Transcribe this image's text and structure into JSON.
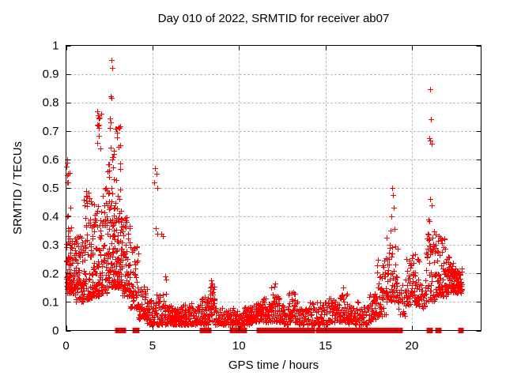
{
  "chart_data": {
    "type": "scatter",
    "title": "Day 010 of 2022, SRMTID for receiver ab07",
    "xlabel": "GPS time / hours",
    "ylabel": "SRMTID / TECUs",
    "xlim": [
      0,
      24
    ],
    "ylim": [
      0,
      1
    ],
    "xticks": [
      {
        "v": 0,
        "label": "0"
      },
      {
        "v": 5,
        "label": "5"
      },
      {
        "v": 10,
        "label": "10"
      },
      {
        "v": 15,
        "label": "15"
      },
      {
        "v": 20,
        "label": "20"
      }
    ],
    "yticks": [
      {
        "v": 0,
        "label": "0"
      },
      {
        "v": 0.1,
        "label": "0.1"
      },
      {
        "v": 0.2,
        "label": "0.2"
      },
      {
        "v": 0.3,
        "label": "0.3"
      },
      {
        "v": 0.4,
        "label": "0.4"
      },
      {
        "v": 0.5,
        "label": "0.5"
      },
      {
        "v": 0.6,
        "label": "0.6"
      },
      {
        "v": 0.7,
        "label": "0.7"
      },
      {
        "v": 0.8,
        "label": "0.8"
      },
      {
        "v": 0.9,
        "label": "0.9"
      },
      {
        "v": 1,
        "label": "1"
      }
    ],
    "grid": "dashed-gray-at-major-ticks",
    "legend": "none",
    "marker_shape": "plus",
    "marker_color": "#ff0000",
    "marker_size_px": 7,
    "zero_marker_shape": "filled-square",
    "grid_color": "#a0a0a0",
    "axis_color": "#000000",
    "cloud_bins_format": [
      "x0_hours",
      "x1_hours",
      "count",
      "y_min",
      "y_max",
      "skew_exponent_toward_ymin"
    ],
    "cloud_bins": [
      [
        0.0,
        0.3,
        40,
        0.15,
        0.6,
        2.6
      ],
      [
        0.02,
        0.5,
        65,
        0.13,
        0.36,
        1.6
      ],
      [
        0.5,
        1.0,
        75,
        0.1,
        0.33,
        1.5
      ],
      [
        1.0,
        1.5,
        75,
        0.11,
        0.5,
        1.8
      ],
      [
        1.5,
        2.0,
        75,
        0.12,
        0.46,
        1.7
      ],
      [
        1.75,
        2.05,
        8,
        0.6,
        0.77,
        1.0
      ],
      [
        2.0,
        2.5,
        70,
        0.13,
        0.5,
        1.6
      ],
      [
        2.4,
        2.8,
        20,
        0.45,
        0.77,
        1.2
      ],
      [
        2.5,
        2.85,
        60,
        0.15,
        0.45,
        1.4
      ],
      [
        2.85,
        3.2,
        80,
        0.15,
        0.72,
        1.9
      ],
      [
        3.2,
        3.7,
        65,
        0.12,
        0.4,
        1.7
      ],
      [
        3.7,
        4.2,
        55,
        0.08,
        0.3,
        1.6
      ],
      [
        4.2,
        4.7,
        50,
        0.04,
        0.16,
        1.4
      ],
      [
        4.7,
        5.2,
        48,
        0.02,
        0.11,
        1.3
      ],
      [
        5.2,
        5.8,
        50,
        0.02,
        0.13,
        1.4
      ],
      [
        5.8,
        6.3,
        46,
        0.02,
        0.09,
        1.3
      ],
      [
        6.3,
        6.8,
        46,
        0.02,
        0.09,
        1.3
      ],
      [
        6.8,
        7.3,
        46,
        0.02,
        0.1,
        1.3
      ],
      [
        7.3,
        7.8,
        44,
        0.02,
        0.09,
        1.3
      ],
      [
        7.8,
        8.25,
        44,
        0.02,
        0.12,
        1.4
      ],
      [
        8.25,
        8.6,
        36,
        0.03,
        0.16,
        1.5
      ],
      [
        8.6,
        9.2,
        44,
        0.02,
        0.08,
        1.3
      ],
      [
        9.2,
        9.75,
        42,
        0.02,
        0.08,
        1.3
      ],
      [
        9.75,
        10.25,
        40,
        0.02,
        0.07,
        1.3
      ],
      [
        10.25,
        10.75,
        42,
        0.02,
        0.09,
        1.3
      ],
      [
        10.75,
        11.25,
        44,
        0.03,
        0.1,
        1.3
      ],
      [
        11.25,
        11.8,
        46,
        0.03,
        0.115,
        1.3
      ],
      [
        11.8,
        12.35,
        46,
        0.03,
        0.125,
        1.4
      ],
      [
        12.35,
        12.85,
        42,
        0.02,
        0.09,
        1.3
      ],
      [
        12.85,
        13.4,
        44,
        0.03,
        0.135,
        1.4
      ],
      [
        13.4,
        14.0,
        42,
        0.02,
        0.08,
        1.3
      ],
      [
        14.0,
        14.6,
        40,
        0.02,
        0.1,
        1.3
      ],
      [
        14.6,
        15.2,
        42,
        0.02,
        0.1,
        1.3
      ],
      [
        15.2,
        15.8,
        44,
        0.03,
        0.12,
        1.3
      ],
      [
        15.8,
        16.3,
        42,
        0.03,
        0.13,
        1.4
      ],
      [
        16.3,
        16.9,
        42,
        0.02,
        0.1,
        1.3
      ],
      [
        16.9,
        17.5,
        40,
        0.02,
        0.09,
        1.3
      ],
      [
        17.5,
        18.0,
        40,
        0.03,
        0.13,
        1.3
      ],
      [
        18.0,
        18.5,
        45,
        0.05,
        0.26,
        1.5
      ],
      [
        18.5,
        19.2,
        60,
        0.1,
        0.33,
        1.4
      ],
      [
        19.2,
        19.65,
        22,
        0.05,
        0.16,
        1.3
      ],
      [
        19.65,
        20.4,
        70,
        0.09,
        0.27,
        1.4
      ],
      [
        20.4,
        20.8,
        22,
        0.08,
        0.18,
        1.3
      ],
      [
        20.8,
        21.4,
        60,
        0.1,
        0.35,
        1.4
      ],
      [
        21.4,
        22.0,
        65,
        0.12,
        0.33,
        1.5
      ],
      [
        22.0,
        22.5,
        70,
        0.13,
        0.26,
        1.3
      ],
      [
        22.5,
        22.9,
        50,
        0.13,
        0.22,
        1.2
      ]
    ],
    "outlier_points": [
      [
        2.62,
        0.95
      ],
      [
        2.66,
        0.92
      ],
      [
        2.6,
        0.82
      ],
      [
        2.64,
        0.815
      ],
      [
        1.82,
        0.77
      ],
      [
        1.86,
        0.755
      ],
      [
        1.9,
        0.745
      ],
      [
        1.84,
        0.72
      ],
      [
        1.88,
        0.71
      ],
      [
        0.05,
        0.6
      ],
      [
        0.07,
        0.59
      ],
      [
        0.04,
        0.575
      ],
      [
        0.1,
        0.55
      ],
      [
        0.06,
        0.545
      ],
      [
        0.12,
        0.52
      ],
      [
        5.15,
        0.57
      ],
      [
        5.22,
        0.55
      ],
      [
        5.1,
        0.52
      ],
      [
        5.3,
        0.5
      ],
      [
        5.2,
        0.36
      ],
      [
        5.28,
        0.34
      ],
      [
        5.52,
        0.34
      ],
      [
        5.58,
        0.33
      ],
      [
        3.6,
        0.34
      ],
      [
        3.66,
        0.31
      ],
      [
        5.75,
        0.19
      ],
      [
        5.78,
        0.18
      ],
      [
        8.4,
        0.175
      ],
      [
        8.43,
        0.165
      ],
      [
        8.38,
        0.155
      ],
      [
        11.85,
        0.15
      ],
      [
        12.05,
        0.155
      ],
      [
        12.1,
        0.165
      ],
      [
        13.15,
        0.135
      ],
      [
        13.18,
        0.128
      ],
      [
        13.22,
        0.13
      ],
      [
        16.0,
        0.15
      ],
      [
        18.85,
        0.5
      ],
      [
        18.9,
        0.475
      ],
      [
        18.95,
        0.43
      ],
      [
        18.8,
        0.4
      ],
      [
        19.0,
        0.355
      ],
      [
        18.75,
        0.35
      ],
      [
        21.05,
        0.845
      ],
      [
        21.1,
        0.74
      ],
      [
        21.02,
        0.675
      ],
      [
        21.07,
        0.665
      ],
      [
        21.12,
        0.655
      ],
      [
        21.05,
        0.46
      ],
      [
        21.12,
        0.44
      ],
      [
        20.95,
        0.39
      ],
      [
        21.0,
        0.385
      ],
      [
        21.55,
        0.33
      ],
      [
        21.5,
        0.315
      ]
    ],
    "zero_flag_times_hours": [
      3.0,
      3.08,
      3.15,
      3.32,
      4.02,
      4.1,
      7.9,
      8.2,
      8.24,
      9.62,
      9.7,
      10.0,
      10.12,
      10.3,
      11.18,
      11.25,
      11.42,
      11.55,
      11.72,
      11.9,
      12.08,
      12.2,
      12.42,
      12.55,
      12.82,
      13.0,
      13.2,
      13.35,
      13.52,
      13.8,
      13.86,
      14.2,
      14.26,
      14.6,
      14.82,
      14.88,
      15.05,
      15.12,
      15.3,
      15.5,
      15.56,
      15.76,
      16.0,
      16.06,
      16.3,
      16.5,
      16.56,
      16.76,
      16.82,
      17.05,
      17.12,
      17.3,
      17.5,
      17.56,
      17.76,
      18.1,
      18.32,
      18.38,
      18.6,
      18.86,
      19.06,
      19.12,
      19.32,
      21.0,
      21.06,
      21.5,
      21.56,
      22.82
    ]
  }
}
